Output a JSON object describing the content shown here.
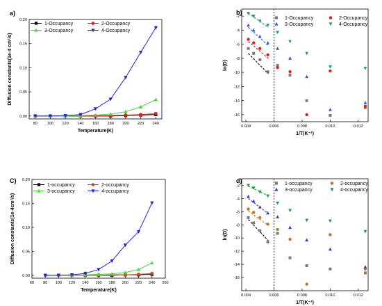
{
  "chart_data": [
    {
      "panel": "a)",
      "type": "line",
      "xlabel": "Temperature(K)",
      "ylabel": "Diffusion constants(1e-4 cm²/s)",
      "x": [
        80,
        100,
        120,
        140,
        160,
        180,
        200,
        220,
        240
      ],
      "xticks": [
        80,
        100,
        120,
        140,
        160,
        180,
        200,
        220,
        240
      ],
      "xlim": [
        72,
        248
      ],
      "ylim": [
        -0.006,
        0.2
      ],
      "yticks": [
        "0.00",
        "0.05",
        "0.10",
        "0.15",
        "0.20"
      ],
      "legend_position": "top-left",
      "series": [
        {
          "name": "1-Occupancy",
          "color": "#000000",
          "marker": "square",
          "values": [
            0,
            0,
            0,
            0,
            0,
            0,
            0.001,
            0.002,
            0.003
          ]
        },
        {
          "name": "2-Occupancy",
          "color": "#e8201c",
          "marker": "circle",
          "values": [
            0,
            0,
            0,
            0,
            0.0005,
            0.001,
            0.002,
            0.003,
            0.005
          ]
        },
        {
          "name": "3-Occupancy",
          "color": "#4cd43c",
          "marker": "triangle-up",
          "values": [
            0,
            0,
            0,
            0.001,
            0.002,
            0.004,
            0.009,
            0.019,
            0.034
          ]
        },
        {
          "name": "4-Occupancy",
          "color": "#2222dd",
          "marker": "triangle-down",
          "values": [
            0,
            0,
            0.001,
            0.003,
            0.015,
            0.035,
            0.08,
            0.132,
            0.183
          ]
        }
      ]
    },
    {
      "panel": "b)",
      "type": "scatter",
      "xlabel": "1/T(K⁻¹)",
      "ylabel": "ln(D)",
      "xlim": [
        0.0037,
        0.0127
      ],
      "ylim": [
        -17,
        -1
      ],
      "xticks": [
        "0.004",
        "0.006",
        "0.008",
        "0.010",
        "0.012"
      ],
      "yticks": [
        "-2",
        "-4",
        "-6",
        "-8",
        "-10",
        "-12",
        "-14",
        "-16"
      ],
      "vline_x": 0.006,
      "legend_position": "top-right",
      "series": [
        {
          "name": "1-Occupancy",
          "color": "#7a7a7a",
          "marker": "square",
          "x": [
            0.00417,
            0.00455,
            0.005,
            0.00556,
            0.00625,
            0.00714,
            0.00833,
            0.01,
            0.0125
          ],
          "y": [
            -6.6,
            -7.3,
            -8.2,
            -9.9,
            -9.0,
            -10.4,
            -14.0,
            -16.1,
            -15.0
          ]
        },
        {
          "name": "2-Occupancy",
          "color": "#e8201c",
          "marker": "circle",
          "x": [
            0.00417,
            0.00455,
            0.005,
            0.00556,
            0.00625,
            0.00714,
            0.00833,
            0.01,
            0.0125
          ],
          "y": [
            -5.3,
            -5.8,
            -6.6,
            -7.5,
            -9.3,
            -9.9,
            -16.0,
            -9.8,
            -14.8
          ]
        },
        {
          "name": "3-Occupancy",
          "color": "#2a5ad8",
          "marker": "triangle-up",
          "x": [
            0.00417,
            0.00455,
            0.005,
            0.00556,
            0.00625,
            0.00714,
            0.00833,
            0.01,
            0.0125
          ],
          "y": [
            -3.3,
            -4.0,
            -4.9,
            -5.8,
            -6.6,
            -8.0,
            -10.6,
            -15.3,
            -14.3
          ]
        },
        {
          "name": "4-Occupancy",
          "color": "#1a9a7a",
          "marker": "triangle-down",
          "x": [
            0.00417,
            0.00455,
            0.005,
            0.00556,
            0.00625,
            0.00714,
            0.00833,
            0.01,
            0.0125
          ],
          "y": [
            -1.6,
            -2.0,
            -2.7,
            -3.3,
            -4.3,
            -5.6,
            -7.3,
            -9.2,
            -9.4
          ]
        }
      ],
      "fits": [
        {
          "color": "#000000",
          "x": [
            0.00417,
            0.0056
          ],
          "y": [
            -7.3,
            -10.2
          ]
        },
        {
          "color": "#c21c1c",
          "x": [
            0.00417,
            0.0056
          ],
          "y": [
            -5.6,
            -8.0
          ]
        },
        {
          "color": "#2a5ad8",
          "x": [
            0.00417,
            0.0056
          ],
          "y": [
            -3.6,
            -6.2
          ]
        },
        {
          "color": "#1a9a3a",
          "x": [
            0.00417,
            0.0056
          ],
          "y": [
            -1.6,
            -3.6
          ]
        }
      ]
    },
    {
      "panel": "C)",
      "type": "line",
      "xlabel": "Temperature(K)",
      "ylabel": "Diffusion constants(1e-4cm²/s)",
      "x": [
        80,
        100,
        120,
        140,
        160,
        180,
        200,
        220,
        240
      ],
      "xticks": [
        60,
        80,
        100,
        120,
        140,
        160,
        180,
        200,
        220,
        240,
        260
      ],
      "xlim": [
        60,
        260
      ],
      "ylim": [
        -0.006,
        0.2
      ],
      "yticks": [
        "0.00",
        "0.05",
        "0.10",
        "0.15",
        "0.20"
      ],
      "legend_position": "top",
      "series": [
        {
          "name": "1-occupancy",
          "color": "#000000",
          "marker": "square",
          "values": [
            0,
            0,
            0,
            0,
            0,
            0,
            0.001,
            0.001,
            0.002
          ]
        },
        {
          "name": "2-occupancy",
          "color": "#c0502a",
          "marker": "circle",
          "values": [
            0,
            0,
            0,
            0,
            0,
            0.001,
            0.001,
            0.002,
            0.004
          ]
        },
        {
          "name": "3-occupancy",
          "color": "#4cd43c",
          "marker": "triangle-up",
          "values": [
            0,
            0,
            0,
            0.001,
            0.002,
            0.003,
            0.006,
            0.012,
            0.026
          ]
        },
        {
          "name": "4-occupancy",
          "color": "#2222dd",
          "marker": "triangle-down",
          "values": [
            0,
            0,
            0.001,
            0.004,
            0.012,
            0.03,
            0.063,
            0.091,
            0.151
          ]
        }
      ]
    },
    {
      "panel": "d)",
      "type": "scatter",
      "xlabel": "1/T(K⁻¹)",
      "ylabel": "ln(D)",
      "xlim": [
        0.0037,
        0.0127
      ],
      "ylim": [
        -18,
        -1
      ],
      "xticks": [
        "0.004",
        "0.006",
        "0.008",
        "0.010",
        "0.012"
      ],
      "yticks": [
        "-2",
        "-4",
        "-6",
        "-8",
        "-10",
        "-12",
        "-14",
        "-16"
      ],
      "vline_x": 0.006,
      "legend_position": "top-right",
      "series": [
        {
          "name": "1-occupancy",
          "color": "#7a7a7a",
          "marker": "square",
          "x": [
            0.00417,
            0.00455,
            0.005,
            0.00556,
            0.00625,
            0.00714,
            0.00833,
            0.01,
            0.0125
          ],
          "y": [
            -6.9,
            -7.7,
            -8.9,
            -10.6,
            -9.3,
            -13.0,
            -14.2,
            -14.7,
            -15.3
          ]
        },
        {
          "name": "2-occupancy",
          "color": "#c0762a",
          "marker": "circle",
          "x": [
            0.00417,
            0.00455,
            0.005,
            0.00556,
            0.00625,
            0.00714,
            0.00833,
            0.01,
            0.0125
          ],
          "y": [
            -5.6,
            -6.1,
            -6.9,
            -7.9,
            -8.7,
            -10.2,
            -17.0,
            -9.5,
            -14.7
          ]
        },
        {
          "name": "3-occupancy",
          "color": "#2a3ad8",
          "marker": "triangle-up",
          "x": [
            0.00417,
            0.00455,
            0.005,
            0.00556,
            0.00625,
            0.00714,
            0.00833,
            0.01,
            0.0125
          ],
          "y": [
            -3.7,
            -4.4,
            -5.3,
            -6.2,
            -6.8,
            -8.4,
            -10.3,
            -11.7,
            -14.4
          ]
        },
        {
          "name": "4-occupancy",
          "color": "#1a9a3a",
          "marker": "triangle-down",
          "x": [
            0.00417,
            0.00455,
            0.005,
            0.00556,
            0.00625,
            0.00714,
            0.00833,
            0.01,
            0.0125
          ],
          "y": [
            -2.0,
            -2.4,
            -3.0,
            -3.6,
            -4.7,
            -5.8,
            -7.3,
            -7.4,
            -9.0
          ]
        }
      ],
      "fits": [
        {
          "color": "#000000",
          "x": [
            0.00417,
            0.0056
          ],
          "y": [
            -7.2,
            -10.4
          ]
        },
        {
          "color": "#c0762a",
          "x": [
            0.00417,
            0.0056
          ],
          "y": [
            -5.9,
            -8.1
          ]
        },
        {
          "color": "#2a3ad8",
          "x": [
            0.00417,
            0.0056
          ],
          "y": [
            -4.0,
            -6.3
          ]
        },
        {
          "color": "#1a9a3a",
          "x": [
            0.00417,
            0.0056
          ],
          "y": [
            -2.1,
            -3.6
          ]
        }
      ]
    }
  ]
}
